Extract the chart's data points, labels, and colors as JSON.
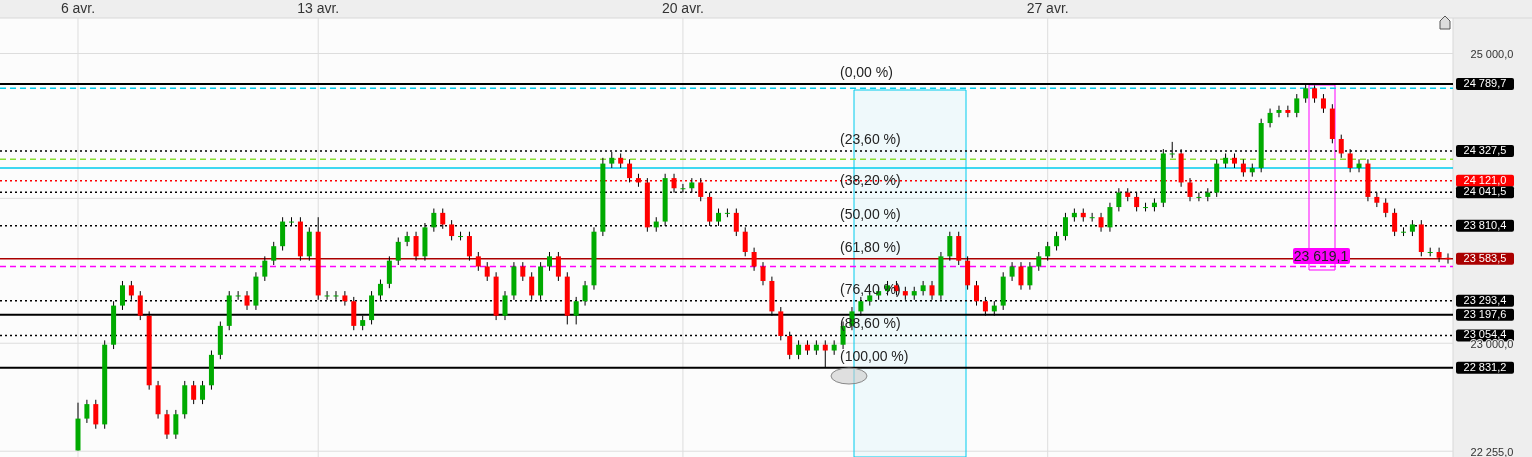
{
  "chart_data": {
    "type": "candlestick",
    "categories": [
      "6 avr.",
      null,
      null,
      null,
      null,
      null,
      null,
      null,
      null,
      null,
      null,
      null,
      null,
      null,
      null,
      null,
      null,
      null,
      null,
      null,
      null,
      null,
      null,
      null,
      null,
      null,
      null,
      "13 avr.",
      null,
      null,
      null,
      null,
      null,
      null,
      null,
      null,
      null,
      null,
      null,
      null,
      null,
      null,
      null,
      null,
      null,
      null,
      null,
      null,
      null,
      null,
      null,
      null,
      null,
      null,
      null,
      null,
      null,
      null,
      null,
      null,
      null,
      null,
      null,
      null,
      null,
      null,
      null,
      null,
      "20 avr.",
      null,
      null,
      null,
      null,
      null,
      null,
      null,
      null,
      null,
      null,
      null,
      null,
      null,
      null,
      null,
      null,
      null,
      null,
      null,
      null,
      null,
      null,
      null,
      null,
      null,
      null,
      null,
      null,
      null,
      null,
      null,
      null,
      null,
      null,
      null,
      null,
      null,
      null,
      null,
      null,
      "27 avr.",
      null,
      null,
      null,
      null,
      null,
      null,
      null,
      null,
      null,
      null,
      null,
      null,
      null,
      null,
      null,
      null,
      null,
      null,
      null,
      null,
      null,
      null,
      null,
      null,
      null,
      null,
      null,
      null,
      null,
      null,
      null,
      null,
      null,
      null,
      null,
      null,
      null,
      null,
      null,
      null,
      null,
      null,
      null,
      null,
      null
    ],
    "ohlc": [
      [
        22260,
        22590,
        22260,
        22480
      ],
      [
        22480,
        22610,
        22450,
        22580
      ],
      [
        22580,
        22610,
        22410,
        22440
      ],
      [
        22440,
        23020,
        22410,
        22990
      ],
      [
        22990,
        23290,
        22960,
        23260
      ],
      [
        23260,
        23430,
        23230,
        23400
      ],
      [
        23400,
        23430,
        23300,
        23330
      ],
      [
        23330,
        23360,
        23160,
        23190
      ],
      [
        23190,
        23220,
        22680,
        22710
      ],
      [
        22710,
        22740,
        22480,
        22510
      ],
      [
        22510,
        22540,
        22340,
        22370
      ],
      [
        22370,
        22540,
        22340,
        22510
      ],
      [
        22510,
        22740,
        22480,
        22710
      ],
      [
        22710,
        22740,
        22580,
        22610
      ],
      [
        22610,
        22740,
        22580,
        22710
      ],
      [
        22710,
        22950,
        22680,
        22920
      ],
      [
        22920,
        23150,
        22890,
        23120
      ],
      [
        23120,
        23360,
        23090,
        23330
      ],
      [
        23330,
        23360,
        23300,
        23330
      ],
      [
        23330,
        23360,
        23230,
        23260
      ],
      [
        23260,
        23490,
        23230,
        23460
      ],
      [
        23460,
        23600,
        23430,
        23570
      ],
      [
        23570,
        23700,
        23540,
        23670
      ],
      [
        23670,
        23870,
        23640,
        23840
      ],
      [
        23840,
        23870,
        23810,
        23840
      ],
      [
        23840,
        23870,
        23570,
        23600
      ],
      [
        23600,
        23800,
        23570,
        23770
      ],
      [
        23770,
        23870,
        23300,
        23330
      ],
      [
        23330,
        23360,
        23300,
        23330
      ],
      [
        23330,
        23360,
        23300,
        23330
      ],
      [
        23330,
        23360,
        23260,
        23290
      ],
      [
        23290,
        23320,
        23090,
        23120
      ],
      [
        23120,
        23190,
        23090,
        23160
      ],
      [
        23160,
        23360,
        23130,
        23330
      ],
      [
        23330,
        23440,
        23300,
        23410
      ],
      [
        23410,
        23600,
        23380,
        23570
      ],
      [
        23570,
        23730,
        23540,
        23700
      ],
      [
        23700,
        23770,
        23670,
        23740
      ],
      [
        23740,
        23770,
        23570,
        23600
      ],
      [
        23600,
        23830,
        23570,
        23800
      ],
      [
        23800,
        23930,
        23770,
        23900
      ],
      [
        23900,
        23930,
        23790,
        23820
      ],
      [
        23820,
        23850,
        23710,
        23740
      ],
      [
        23740,
        23770,
        23710,
        23740
      ],
      [
        23740,
        23770,
        23570,
        23600
      ],
      [
        23600,
        23630,
        23500,
        23530
      ],
      [
        23530,
        23560,
        23430,
        23460
      ],
      [
        23460,
        23490,
        23160,
        23190
      ],
      [
        23190,
        23360,
        23160,
        23330
      ],
      [
        23330,
        23560,
        23300,
        23530
      ],
      [
        23530,
        23560,
        23430,
        23460
      ],
      [
        23460,
        23490,
        23300,
        23330
      ],
      [
        23330,
        23560,
        23300,
        23530
      ],
      [
        23530,
        23630,
        23500,
        23600
      ],
      [
        23600,
        23630,
        23430,
        23460
      ],
      [
        23460,
        23490,
        23130,
        23190
      ],
      [
        23190,
        23320,
        23130,
        23290
      ],
      [
        23290,
        23430,
        23260,
        23400
      ],
      [
        23400,
        23800,
        23370,
        23770
      ],
      [
        23770,
        24280,
        23740,
        24240
      ],
      [
        24240,
        24320,
        24210,
        24280
      ],
      [
        24280,
        24310,
        24210,
        24240
      ],
      [
        24240,
        24270,
        24110,
        24140
      ],
      [
        24140,
        24170,
        24080,
        24110
      ],
      [
        24110,
        24140,
        23770,
        23800
      ],
      [
        23800,
        23870,
        23770,
        23840
      ],
      [
        23840,
        24170,
        23810,
        24140
      ],
      [
        24140,
        24170,
        24040,
        24070
      ],
      [
        24070,
        24100,
        24040,
        24070
      ],
      [
        24070,
        24140,
        24040,
        24110
      ],
      [
        24110,
        24140,
        23980,
        24010
      ],
      [
        24010,
        24040,
        23810,
        23840
      ],
      [
        23840,
        23930,
        23810,
        23900
      ],
      [
        23900,
        23930,
        23870,
        23900
      ],
      [
        23900,
        23930,
        23740,
        23770
      ],
      [
        23770,
        23800,
        23600,
        23630
      ],
      [
        23630,
        23660,
        23500,
        23530
      ],
      [
        23530,
        23560,
        23400,
        23430
      ],
      [
        23430,
        23460,
        23190,
        23220
      ],
      [
        23220,
        23250,
        23020,
        23050
      ],
      [
        23050,
        23080,
        22890,
        22920
      ],
      [
        22920,
        23020,
        22890,
        22990
      ],
      [
        22990,
        23020,
        22920,
        22950
      ],
      [
        22950,
        23020,
        22920,
        22990
      ],
      [
        22990,
        23020,
        22830,
        22950
      ],
      [
        22950,
        23020,
        22920,
        22990
      ],
      [
        22990,
        23150,
        22960,
        23120
      ],
      [
        23120,
        23250,
        23090,
        23220
      ],
      [
        23220,
        23320,
        23190,
        23290
      ],
      [
        23290,
        23360,
        23260,
        23330
      ],
      [
        23330,
        23390,
        23300,
        23360
      ],
      [
        23360,
        23430,
        23330,
        23400
      ],
      [
        23400,
        23430,
        23330,
        23360
      ],
      [
        23360,
        23390,
        23300,
        23330
      ],
      [
        23330,
        23390,
        23300,
        23360
      ],
      [
        23360,
        23430,
        23330,
        23400
      ],
      [
        23400,
        23430,
        23300,
        23330
      ],
      [
        23330,
        23630,
        23300,
        23600
      ],
      [
        23600,
        23770,
        23570,
        23740
      ],
      [
        23740,
        23770,
        23540,
        23570
      ],
      [
        23570,
        23600,
        23370,
        23400
      ],
      [
        23400,
        23430,
        23260,
        23290
      ],
      [
        23290,
        23320,
        23190,
        23220
      ],
      [
        23220,
        23290,
        23190,
        23260
      ],
      [
        23260,
        23490,
        23230,
        23460
      ],
      [
        23460,
        23560,
        23430,
        23530
      ],
      [
        23530,
        23560,
        23370,
        23400
      ],
      [
        23400,
        23560,
        23370,
        23530
      ],
      [
        23530,
        23630,
        23500,
        23600
      ],
      [
        23600,
        23700,
        23570,
        23670
      ],
      [
        23670,
        23770,
        23640,
        23740
      ],
      [
        23740,
        23900,
        23710,
        23870
      ],
      [
        23870,
        23930,
        23840,
        23900
      ],
      [
        23900,
        23930,
        23840,
        23870
      ],
      [
        23870,
        23900,
        23840,
        23870
      ],
      [
        23870,
        23900,
        23770,
        23800
      ],
      [
        23800,
        23970,
        23770,
        23940
      ],
      [
        23940,
        24070,
        23910,
        24040
      ],
      [
        24040,
        24070,
        23980,
        24010
      ],
      [
        24010,
        24040,
        23910,
        23940
      ],
      [
        23940,
        23970,
        23910,
        23940
      ],
      [
        23940,
        24000,
        23910,
        23970
      ],
      [
        23970,
        24340,
        23940,
        24310
      ],
      [
        24310,
        24390,
        24280,
        24310
      ],
      [
        24310,
        24340,
        24080,
        24110
      ],
      [
        24110,
        24140,
        23980,
        24010
      ],
      [
        24010,
        24040,
        23980,
        24010
      ],
      [
        24010,
        24070,
        23980,
        24040
      ],
      [
        24040,
        24270,
        24010,
        24240
      ],
      [
        24240,
        24310,
        24210,
        24280
      ],
      [
        24280,
        24310,
        24210,
        24240
      ],
      [
        24240,
        24270,
        24150,
        24180
      ],
      [
        24180,
        24240,
        24150,
        24210
      ],
      [
        24210,
        24550,
        24180,
        24520
      ],
      [
        24520,
        24620,
        24490,
        24590
      ],
      [
        24590,
        24640,
        24560,
        24610
      ],
      [
        24610,
        24640,
        24560,
        24590
      ],
      [
        24590,
        24720,
        24560,
        24690
      ],
      [
        24690,
        24790,
        24660,
        24760
      ],
      [
        24760,
        24780,
        24660,
        24690
      ],
      [
        24690,
        24720,
        24590,
        24620
      ],
      [
        24620,
        24650,
        24380,
        24410
      ],
      [
        24410,
        24440,
        24280,
        24310
      ],
      [
        24310,
        24340,
        24180,
        24210
      ],
      [
        24210,
        24270,
        24180,
        24240
      ],
      [
        24240,
        24270,
        23980,
        24010
      ],
      [
        24010,
        24040,
        23940,
        23970
      ],
      [
        23970,
        24000,
        23870,
        23900
      ],
      [
        23900,
        23930,
        23740,
        23770
      ],
      [
        23770,
        23800,
        23740,
        23770
      ],
      [
        23770,
        23850,
        23740,
        23820
      ],
      [
        23820,
        23850,
        23600,
        23630
      ],
      [
        23630,
        23660,
        23600,
        23630
      ],
      [
        23630,
        23660,
        23560,
        23590
      ],
      [
        23590,
        23620,
        23550,
        23580
      ]
    ],
    "ylim": [
      22215,
      25245
    ],
    "yticks": [
      {
        "value": 22255,
        "label": "22 255,0"
      },
      {
        "value": 23000,
        "label": "23 000,0"
      },
      {
        "value": 24000,
        "label": null
      },
      {
        "value": 25000,
        "label": "25 000,0"
      }
    ],
    "grid": true,
    "ref_lines": [
      {
        "axis": "y",
        "value": 24789.7,
        "label": "24 789,7",
        "color": "#000000",
        "line_style": "solid"
      },
      {
        "axis": "y",
        "value": 24760,
        "label": null,
        "color": "#00ccee",
        "line_style": "dashed"
      },
      {
        "axis": "y",
        "value": 24327.5,
        "label": "24 327,5",
        "color": "#000000",
        "line_style": "dotted"
      },
      {
        "axis": "y",
        "value": 24270,
        "label": null,
        "color": "#88dd33",
        "line_style": "dashed"
      },
      {
        "axis": "y",
        "value": 24210,
        "label": null,
        "color": "#00ccee",
        "line_style": "solid"
      },
      {
        "axis": "y",
        "value": 24121.0,
        "label": "24 121,0",
        "color": "#ff0000",
        "line_style": "dotted"
      },
      {
        "axis": "y",
        "value": 24041.5,
        "label": "24 041,5",
        "color": "#000000",
        "line_style": "dotted"
      },
      {
        "axis": "y",
        "value": 23810.4,
        "label": "23 810,4",
        "color": "#000000",
        "line_style": "dotted"
      },
      {
        "axis": "y",
        "value": 23583.5,
        "label": "23 583,5",
        "color": "#aa0000",
        "line_style": "solid"
      },
      {
        "axis": "y",
        "value": 23530,
        "label": null,
        "color": "#ff00ff",
        "line_style": "dashed"
      },
      {
        "axis": "y",
        "value": 23293.4,
        "label": "23 293,4",
        "color": "#000000",
        "line_style": "dotted"
      },
      {
        "axis": "y",
        "value": 23197.6,
        "label": "23 197,6",
        "color": "#000000",
        "line_style": "solid"
      },
      {
        "axis": "y",
        "value": 23054.4,
        "label": "23 054,4",
        "color": "#000000",
        "line_style": "dotted"
      },
      {
        "axis": "y",
        "value": 22831.2,
        "label": "22 831,2",
        "color": "#000000",
        "line_style": "solid"
      }
    ],
    "annotations": [
      {
        "text": "(0,00 %)",
        "y": 24789.7
      },
      {
        "text": "(23,60 %)",
        "y": 24327.5
      },
      {
        "text": "(38,20 %)",
        "y": 24041.5
      },
      {
        "text": "(50,00 %)",
        "y": 23810.4
      },
      {
        "text": "(61,80 %)",
        "y": 23583.5
      },
      {
        "text": "(76,40 %)",
        "y": 23293.4
      },
      {
        "text": "(88,60 %)",
        "y": 23054.4
      },
      {
        "text": "(100,00 %)",
        "y": 22831.2
      },
      "23 619,1"
    ]
  }
}
